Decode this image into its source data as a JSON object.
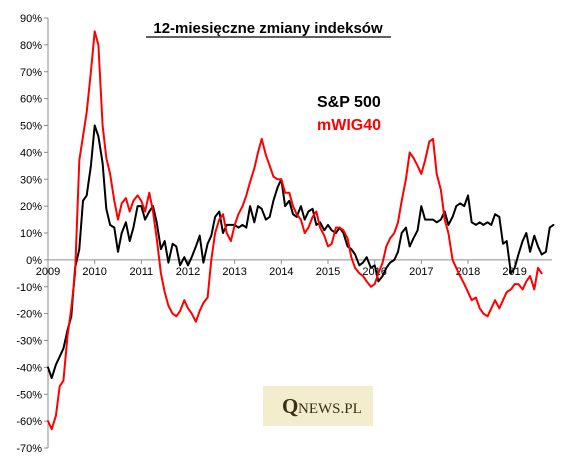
{
  "chart_data": {
    "type": "line",
    "title": "12-miesięczne zmiany indeksów",
    "xlabel": "",
    "ylabel": "",
    "ylim": [
      -70,
      90
    ],
    "xlim": [
      2009,
      2019.8
    ],
    "y_ticks": [
      90,
      80,
      70,
      60,
      50,
      40,
      30,
      20,
      10,
      0,
      -10,
      -20,
      -30,
      -40,
      -50,
      -60,
      -70
    ],
    "y_tick_labels": [
      "90%",
      "80%",
      "70%",
      "60%",
      "50%",
      "40%",
      "30%",
      "20%",
      "10%",
      "0%",
      "-10%",
      "-20%",
      "-30%",
      "-40%",
      "-50%",
      "-60%",
      "-70%"
    ],
    "x_ticks": [
      2009,
      2010,
      2011,
      2012,
      2013,
      2014,
      2015,
      2016,
      2017,
      2018,
      2019
    ],
    "x_tick_labels": [
      "2009",
      "2010",
      "2011",
      "2012",
      "2013",
      "2014",
      "2015",
      "2016",
      "2017",
      "2018",
      "2019"
    ],
    "grid": false,
    "legend_position": "top-right",
    "series": [
      {
        "name": "S&P 500",
        "color": "#000000",
        "points": [
          [
            2009.0,
            -40
          ],
          [
            2009.08,
            -44
          ],
          [
            2009.17,
            -39
          ],
          [
            2009.25,
            -36
          ],
          [
            2009.33,
            -33
          ],
          [
            2009.42,
            -26
          ],
          [
            2009.5,
            -21
          ],
          [
            2009.58,
            -3
          ],
          [
            2009.67,
            4
          ],
          [
            2009.75,
            22
          ],
          [
            2009.83,
            24
          ],
          [
            2009.92,
            35
          ],
          [
            2010.0,
            50
          ],
          [
            2010.08,
            46
          ],
          [
            2010.17,
            36
          ],
          [
            2010.25,
            19
          ],
          [
            2010.33,
            13
          ],
          [
            2010.42,
            12
          ],
          [
            2010.5,
            3
          ],
          [
            2010.58,
            10
          ],
          [
            2010.67,
            14
          ],
          [
            2010.75,
            7
          ],
          [
            2010.83,
            12
          ],
          [
            2010.92,
            20
          ],
          [
            2011.0,
            20
          ],
          [
            2011.08,
            15
          ],
          [
            2011.17,
            18
          ],
          [
            2011.25,
            20
          ],
          [
            2011.33,
            14
          ],
          [
            2011.42,
            4
          ],
          [
            2011.5,
            7
          ],
          [
            2011.58,
            -1
          ],
          [
            2011.67,
            6
          ],
          [
            2011.75,
            5
          ],
          [
            2011.83,
            -2
          ],
          [
            2011.92,
            1
          ],
          [
            2012.0,
            -2
          ],
          [
            2012.08,
            1
          ],
          [
            2012.17,
            5
          ],
          [
            2012.25,
            9
          ],
          [
            2012.33,
            -1
          ],
          [
            2012.42,
            6
          ],
          [
            2012.5,
            9
          ],
          [
            2012.58,
            16
          ],
          [
            2012.67,
            18
          ],
          [
            2012.75,
            10
          ],
          [
            2012.83,
            13
          ],
          [
            2012.92,
            13
          ],
          [
            2013.0,
            13
          ],
          [
            2013.08,
            12
          ],
          [
            2013.17,
            13
          ],
          [
            2013.25,
            12
          ],
          [
            2013.33,
            20
          ],
          [
            2013.42,
            14
          ],
          [
            2013.5,
            20
          ],
          [
            2013.58,
            19
          ],
          [
            2013.67,
            15
          ],
          [
            2013.75,
            16
          ],
          [
            2013.83,
            22
          ],
          [
            2013.92,
            27
          ],
          [
            2014.0,
            30
          ],
          [
            2014.08,
            20
          ],
          [
            2014.17,
            22
          ],
          [
            2014.25,
            17
          ],
          [
            2014.33,
            16
          ],
          [
            2014.42,
            20
          ],
          [
            2014.5,
            15
          ],
          [
            2014.58,
            18
          ],
          [
            2014.67,
            19
          ],
          [
            2014.75,
            13
          ],
          [
            2014.83,
            14
          ],
          [
            2014.92,
            11
          ],
          [
            2015.0,
            13
          ],
          [
            2015.08,
            11
          ],
          [
            2015.17,
            10
          ],
          [
            2015.25,
            12
          ],
          [
            2015.33,
            10
          ],
          [
            2015.42,
            5
          ],
          [
            2015.5,
            4
          ],
          [
            2015.58,
            2
          ],
          [
            2015.67,
            -2
          ],
          [
            2015.75,
            -1
          ],
          [
            2015.83,
            1
          ],
          [
            2015.92,
            -3
          ],
          [
            2016.0,
            -2
          ],
          [
            2016.08,
            -8
          ],
          [
            2016.17,
            -6
          ],
          [
            2016.25,
            -3
          ],
          [
            2016.33,
            -1
          ],
          [
            2016.42,
            0
          ],
          [
            2016.5,
            3
          ],
          [
            2016.58,
            10
          ],
          [
            2016.67,
            12
          ],
          [
            2016.75,
            5
          ],
          [
            2016.83,
            8
          ],
          [
            2016.92,
            11
          ],
          [
            2017.0,
            20
          ],
          [
            2017.08,
            15
          ],
          [
            2017.17,
            15
          ],
          [
            2017.25,
            15
          ],
          [
            2017.33,
            14
          ],
          [
            2017.42,
            15
          ],
          [
            2017.5,
            18
          ],
          [
            2017.58,
            13
          ],
          [
            2017.67,
            16
          ],
          [
            2017.75,
            20
          ],
          [
            2017.83,
            21
          ],
          [
            2017.92,
            20
          ],
          [
            2018.0,
            24
          ],
          [
            2018.08,
            14
          ],
          [
            2018.17,
            13
          ],
          [
            2018.25,
            14
          ],
          [
            2018.33,
            13
          ],
          [
            2018.42,
            14
          ],
          [
            2018.5,
            13
          ],
          [
            2018.58,
            17
          ],
          [
            2018.67,
            16
          ],
          [
            2018.75,
            6
          ],
          [
            2018.83,
            7
          ],
          [
            2018.92,
            -5
          ],
          [
            2019.0,
            -3
          ],
          [
            2019.08,
            2
          ],
          [
            2019.17,
            7
          ],
          [
            2019.25,
            10
          ],
          [
            2019.33,
            3
          ],
          [
            2019.42,
            9
          ],
          [
            2019.5,
            5
          ],
          [
            2019.58,
            2
          ],
          [
            2019.67,
            3
          ],
          [
            2019.75,
            12
          ],
          [
            2019.83,
            13
          ]
        ]
      },
      {
        "name": "mWIG40",
        "color": "#ff0000",
        "points": [
          [
            2009.0,
            -60
          ],
          [
            2009.08,
            -63
          ],
          [
            2009.17,
            -58
          ],
          [
            2009.25,
            -47
          ],
          [
            2009.33,
            -45
          ],
          [
            2009.42,
            -28
          ],
          [
            2009.5,
            -18
          ],
          [
            2009.58,
            -5
          ],
          [
            2009.67,
            37
          ],
          [
            2009.75,
            46
          ],
          [
            2009.83,
            55
          ],
          [
            2009.92,
            70
          ],
          [
            2010.0,
            85
          ],
          [
            2010.08,
            80
          ],
          [
            2010.17,
            50
          ],
          [
            2010.25,
            38
          ],
          [
            2010.33,
            32
          ],
          [
            2010.42,
            22
          ],
          [
            2010.5,
            15
          ],
          [
            2010.58,
            21
          ],
          [
            2010.67,
            23
          ],
          [
            2010.75,
            18
          ],
          [
            2010.83,
            22
          ],
          [
            2010.92,
            24
          ],
          [
            2011.0,
            22
          ],
          [
            2011.08,
            18
          ],
          [
            2011.17,
            25
          ],
          [
            2011.25,
            18
          ],
          [
            2011.33,
            8
          ],
          [
            2011.42,
            -5
          ],
          [
            2011.5,
            -12
          ],
          [
            2011.58,
            -17
          ],
          [
            2011.67,
            -20
          ],
          [
            2011.75,
            -21
          ],
          [
            2011.83,
            -19
          ],
          [
            2011.92,
            -15
          ],
          [
            2012.0,
            -18
          ],
          [
            2012.08,
            -20
          ],
          [
            2012.17,
            -23
          ],
          [
            2012.25,
            -19
          ],
          [
            2012.33,
            -16
          ],
          [
            2012.42,
            -14
          ],
          [
            2012.5,
            0
          ],
          [
            2012.58,
            10
          ],
          [
            2012.67,
            15
          ],
          [
            2012.75,
            17
          ],
          [
            2012.83,
            10
          ],
          [
            2012.92,
            7
          ],
          [
            2013.0,
            13
          ],
          [
            2013.08,
            17
          ],
          [
            2013.17,
            20
          ],
          [
            2013.25,
            24
          ],
          [
            2013.33,
            29
          ],
          [
            2013.42,
            34
          ],
          [
            2013.5,
            40
          ],
          [
            2013.58,
            45
          ],
          [
            2013.67,
            39
          ],
          [
            2013.75,
            35
          ],
          [
            2013.83,
            31
          ],
          [
            2013.92,
            30
          ],
          [
            2014.0,
            30
          ],
          [
            2014.08,
            25
          ],
          [
            2014.17,
            25
          ],
          [
            2014.25,
            20
          ],
          [
            2014.33,
            17
          ],
          [
            2014.42,
            15
          ],
          [
            2014.5,
            10
          ],
          [
            2014.58,
            12
          ],
          [
            2014.67,
            16
          ],
          [
            2014.75,
            18
          ],
          [
            2014.83,
            12
          ],
          [
            2014.92,
            9
          ],
          [
            2015.0,
            5
          ],
          [
            2015.08,
            6
          ],
          [
            2015.17,
            12
          ],
          [
            2015.25,
            12
          ],
          [
            2015.33,
            11
          ],
          [
            2015.42,
            8
          ],
          [
            2015.5,
            1
          ],
          [
            2015.58,
            -3
          ],
          [
            2015.67,
            -5
          ],
          [
            2015.75,
            -6
          ],
          [
            2015.83,
            -8
          ],
          [
            2015.92,
            -10
          ],
          [
            2016.0,
            -9
          ],
          [
            2016.08,
            -5
          ],
          [
            2016.17,
            -1
          ],
          [
            2016.25,
            5
          ],
          [
            2016.33,
            8
          ],
          [
            2016.42,
            10
          ],
          [
            2016.5,
            14
          ],
          [
            2016.58,
            22
          ],
          [
            2016.67,
            30
          ],
          [
            2016.75,
            40
          ],
          [
            2016.83,
            38
          ],
          [
            2016.92,
            35
          ],
          [
            2017.0,
            32
          ],
          [
            2017.08,
            37
          ],
          [
            2017.17,
            44
          ],
          [
            2017.25,
            45
          ],
          [
            2017.33,
            32
          ],
          [
            2017.42,
            26
          ],
          [
            2017.5,
            15
          ],
          [
            2017.58,
            10
          ],
          [
            2017.67,
            0
          ],
          [
            2017.75,
            -3
          ],
          [
            2017.83,
            -6
          ],
          [
            2017.92,
            -9
          ],
          [
            2018.0,
            -12
          ],
          [
            2018.08,
            -15
          ],
          [
            2018.17,
            -14
          ],
          [
            2018.25,
            -18
          ],
          [
            2018.33,
            -20
          ],
          [
            2018.42,
            -21
          ],
          [
            2018.5,
            -18
          ],
          [
            2018.58,
            -15
          ],
          [
            2018.67,
            -18
          ],
          [
            2018.75,
            -15
          ],
          [
            2018.83,
            -12
          ],
          [
            2018.92,
            -11
          ],
          [
            2019.0,
            -9
          ],
          [
            2019.08,
            -9
          ],
          [
            2019.17,
            -11
          ],
          [
            2019.25,
            -8
          ],
          [
            2019.33,
            -6
          ],
          [
            2019.42,
            -11
          ],
          [
            2019.5,
            -3
          ],
          [
            2019.58,
            -5
          ]
        ]
      }
    ]
  },
  "legend": [
    {
      "label": "S&P 500",
      "color": "#000000"
    },
    {
      "label": "mWIG40",
      "color": "#ff0000"
    }
  ],
  "watermark": {
    "brand": "QNEWS.PL"
  }
}
